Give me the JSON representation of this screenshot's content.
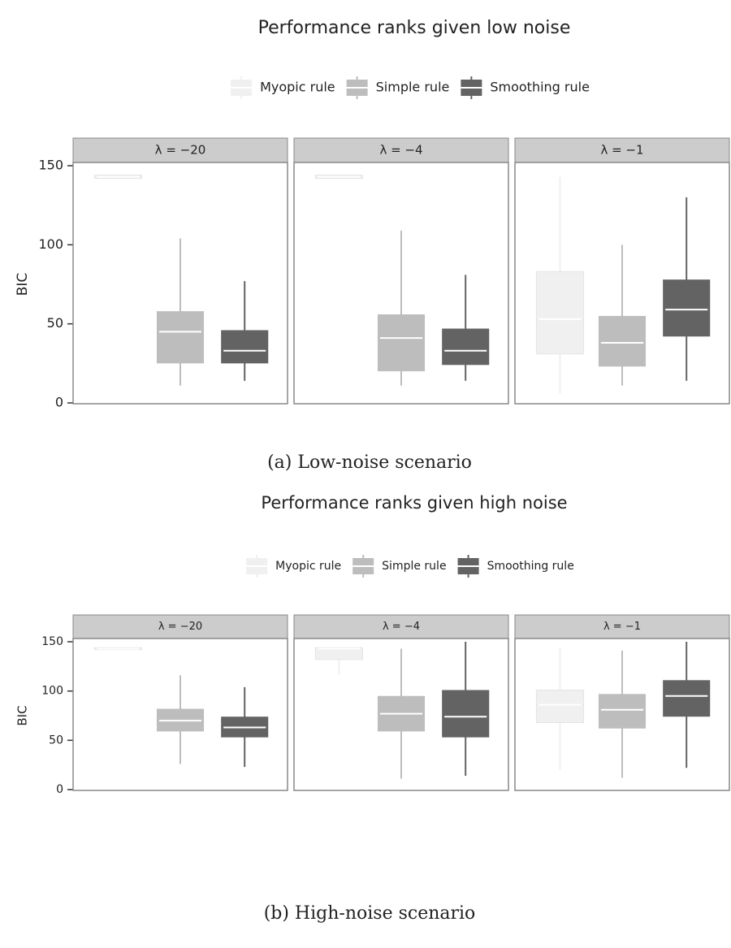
{
  "chart_data": [
    {
      "type": "box",
      "title": "Performance ranks given low noise",
      "ylabel": "BIC",
      "caption": "(a) Low-noise scenario",
      "facets": [
        "λ = −20",
        "λ = −4",
        "λ = −1"
      ],
      "ylim": [
        0,
        150
      ],
      "yticks": [
        0,
        50,
        100,
        150
      ],
      "series": [
        {
          "name": "Myopic rule",
          "color": "#f0f0f0",
          "values": [
            {
              "min": 142,
              "q1": 142,
              "median": 143,
              "q3": 144,
              "max": 144
            },
            {
              "min": 142,
              "q1": 142,
              "median": 143,
              "q3": 144,
              "max": 144
            },
            {
              "min": 6,
              "q1": 31,
              "median": 53,
              "q3": 83,
              "max": 143
            }
          ]
        },
        {
          "name": "Simple rule",
          "color": "#bdbdbd",
          "values": [
            {
              "min": 11,
              "q1": 25,
              "median": 45,
              "q3": 58,
              "max": 104
            },
            {
              "min": 11,
              "q1": 20,
              "median": 41,
              "q3": 56,
              "max": 109
            },
            {
              "min": 11,
              "q1": 23,
              "median": 38,
              "q3": 55,
              "max": 100
            }
          ]
        },
        {
          "name": "Smoothing rule",
          "color": "#636363",
          "values": [
            {
              "min": 14,
              "q1": 25,
              "median": 33,
              "q3": 46,
              "max": 77
            },
            {
              "min": 14,
              "q1": 24,
              "median": 33,
              "q3": 47,
              "max": 81
            },
            {
              "min": 14,
              "q1": 42,
              "median": 59,
              "q3": 78,
              "max": 130
            }
          ]
        }
      ]
    },
    {
      "type": "box",
      "title": "Performance ranks given high noise",
      "ylabel": "BIC",
      "caption": "(b) High-noise scenario",
      "facets": [
        "λ = −20",
        "λ = −4",
        "λ = −1"
      ],
      "ylim": [
        0,
        150
      ],
      "yticks": [
        0,
        50,
        100,
        150
      ],
      "series": [
        {
          "name": "Myopic rule",
          "color": "#f0f0f0",
          "values": [
            {
              "min": 142,
              "q1": 142,
              "median": 143,
              "q3": 144,
              "max": 144
            },
            {
              "min": 117,
              "q1": 132,
              "median": 143,
              "q3": 144,
              "max": 144
            },
            {
              "min": 20,
              "q1": 68,
              "median": 86,
              "q3": 101,
              "max": 143
            }
          ]
        },
        {
          "name": "Simple rule",
          "color": "#bdbdbd",
          "values": [
            {
              "min": 26,
              "q1": 59,
              "median": 70,
              "q3": 82,
              "max": 116
            },
            {
              "min": 11,
              "q1": 59,
              "median": 77,
              "q3": 95,
              "max": 143
            },
            {
              "min": 12,
              "q1": 62,
              "median": 81,
              "q3": 97,
              "max": 141
            }
          ]
        },
        {
          "name": "Smoothing rule",
          "color": "#636363",
          "values": [
            {
              "min": 23,
              "q1": 53,
              "median": 63,
              "q3": 74,
              "max": 104
            },
            {
              "min": 14,
              "q1": 53,
              "median": 74,
              "q3": 101,
              "max": 150
            },
            {
              "min": 22,
              "q1": 74,
              "median": 95,
              "q3": 111,
              "max": 150
            }
          ]
        }
      ]
    }
  ]
}
